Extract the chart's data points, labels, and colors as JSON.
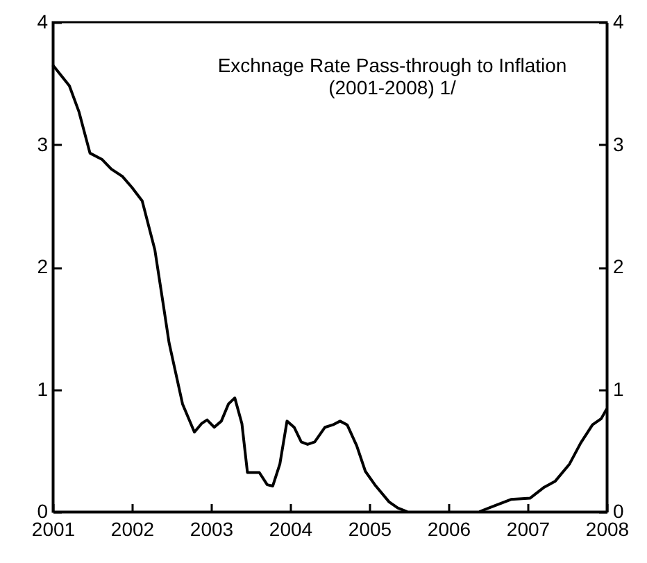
{
  "chart_data": {
    "type": "line",
    "title": "Exchnage Rate Pass-through to Inflation",
    "subtitle": "(2001-2008) 1/",
    "x": [
      2001.0,
      2001.21,
      2001.33,
      2001.47,
      2001.62,
      2001.74,
      2001.88,
      2002.0,
      2002.13,
      2002.29,
      2002.39,
      2002.47,
      2002.64,
      2002.79,
      2002.88,
      2002.95,
      2003.04,
      2003.13,
      2003.22,
      2003.3,
      2003.39,
      2003.46,
      2003.61,
      2003.71,
      2003.78,
      2003.87,
      2003.96,
      2004.05,
      2004.14,
      2004.22,
      2004.31,
      2004.44,
      2004.54,
      2004.63,
      2004.72,
      2004.84,
      2004.95,
      2005.07,
      2005.25,
      2005.36,
      2005.48,
      2005.9,
      2006.39,
      2006.59,
      2006.79,
      2007.03,
      2007.21,
      2007.35,
      2007.53,
      2007.67,
      2007.82,
      2007.93,
      2008.0
    ],
    "series": [
      {
        "color": "#000000",
        "values": [
          3.65,
          3.48,
          3.27,
          2.93,
          2.88,
          2.8,
          2.74,
          2.65,
          2.54,
          2.14,
          1.72,
          1.38,
          0.88,
          0.65,
          0.72,
          0.75,
          0.69,
          0.74,
          0.88,
          0.93,
          0.72,
          0.32,
          0.32,
          0.22,
          0.21,
          0.39,
          0.74,
          0.69,
          0.57,
          0.55,
          0.57,
          0.69,
          0.71,
          0.74,
          0.71,
          0.54,
          0.33,
          0.22,
          0.08,
          0.03,
          0,
          null,
          0,
          0.05,
          0.1,
          0.11,
          0.2,
          0.25,
          0.39,
          0.56,
          0.71,
          0.76,
          0.84
        ]
      }
    ],
    "xlim": [
      2001,
      2008
    ],
    "xticks": [
      2001,
      2002,
      2003,
      2004,
      2005,
      2006,
      2007,
      2008
    ],
    "ylim": [
      0,
      4
    ],
    "yticks": [
      0,
      1,
      2,
      3,
      4
    ],
    "y2lim": [
      0,
      4
    ],
    "y2ticks": [
      0,
      1,
      2,
      3,
      4
    ],
    "grid": false,
    "marker": "none",
    "line_style": "solid"
  }
}
